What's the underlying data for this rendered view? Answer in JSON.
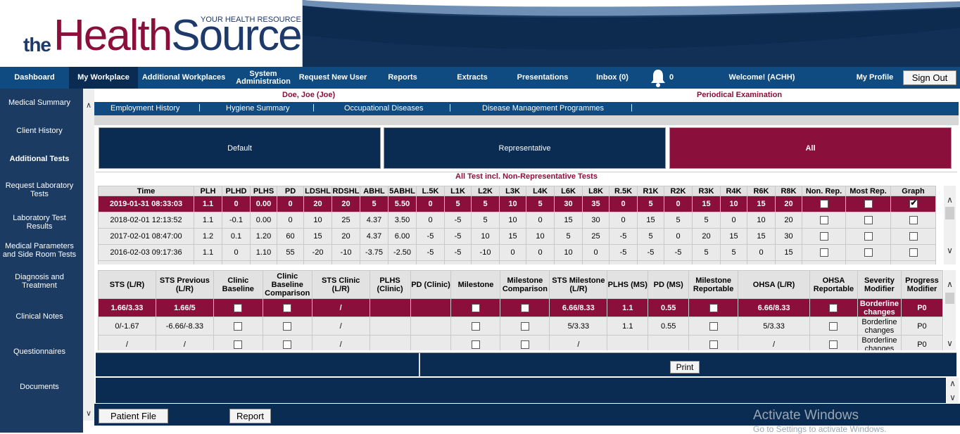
{
  "header": {
    "logo_the": "the",
    "logo_health": "Health",
    "logo_source": "Source",
    "tagline": "YOUR HEALTH RESOURCE"
  },
  "nav": {
    "items": [
      "Dashboard",
      "My Workplace",
      "Additional Workplaces",
      "System Administration",
      "Request New User",
      "Reports",
      "Extracts",
      "Presentations",
      "Inbox (0)"
    ],
    "notifications_count": "0",
    "welcome": "Welcome! (ACHH)",
    "profile": "My Profile",
    "signout": "Sign Out",
    "colors": {
      "nav_bg": "#0f4a80",
      "active_bg": "#0a2c52",
      "brand_maroon": "#8a0f3b",
      "brand_navy": "#1d3a6b"
    }
  },
  "sidebar": {
    "items": [
      "Medical Summary",
      "Client History",
      "Additional Tests",
      "Request Laboratory Tests",
      "Laboratory Test Results",
      "Medical Parameters and Side Room Tests",
      "Diagnosis and Treatment",
      "Clinical Notes",
      "Questionnaires",
      "Documents"
    ]
  },
  "patient": {
    "name": "Doe, Joe (Joe)",
    "exam": "Periodical Examination"
  },
  "subnav": {
    "items": [
      "Employment History",
      "Hygiene Summary",
      "Occupational Diseases",
      "Disease Management Programmes"
    ]
  },
  "filters": {
    "default": "Default",
    "representative": "Representative",
    "all": "All"
  },
  "section_title": "All Test incl. Non-Representative Tests",
  "tests": {
    "headers": [
      "Time",
      "PLH",
      "PLHD",
      "PLHS",
      "PD",
      "LDSHL",
      "RDSHL",
      "ABHL",
      "5ABHL",
      "L.5K",
      "L1K",
      "L2K",
      "L3K",
      "L4K",
      "L6K",
      "L8K",
      "R.5K",
      "R1K",
      "R2K",
      "R3K",
      "R4K",
      "R6K",
      "R8K",
      "Non. Rep.",
      "Most Rep.",
      "Graph"
    ],
    "rows": [
      {
        "time": "2019-01-31 08:33:03",
        "vals": [
          "1.1",
          "0",
          "0.00",
          "0",
          "20",
          "20",
          "5",
          "5.50",
          "0",
          "5",
          "5",
          "10",
          "5",
          "30",
          "35",
          "0",
          "5",
          "0",
          "15",
          "10",
          "15",
          "20"
        ],
        "graph": true
      },
      {
        "time": "2018-02-01 12:13:52",
        "vals": [
          "1.1",
          "-0.1",
          "0.00",
          "0",
          "10",
          "25",
          "4.37",
          "3.50",
          "0",
          "-5",
          "5",
          "10",
          "0",
          "15",
          "30",
          "0",
          "15",
          "5",
          "5",
          "0",
          "10",
          "20"
        ],
        "graph": false
      },
      {
        "time": "2017-02-01 08:47:00",
        "vals": [
          "1.2",
          "0.1",
          "1.20",
          "60",
          "15",
          "20",
          "4.37",
          "6.00",
          "-5",
          "-5",
          "10",
          "15",
          "10",
          "5",
          "25",
          "-5",
          "5",
          "0",
          "20",
          "15",
          "15",
          "30"
        ],
        "graph": false
      },
      {
        "time": "2016-02-03 09:17:36",
        "vals": [
          "1.1",
          "0",
          "1.10",
          "55",
          "-20",
          "-10",
          "-3.75",
          "-2.50",
          "-5",
          "-5",
          "-10",
          "0",
          "0",
          "10",
          "0",
          "-5",
          "-5",
          "-5",
          "5",
          "5",
          "0",
          "15"
        ],
        "graph": false
      }
    ]
  },
  "sts": {
    "headers": [
      "STS (L/R)",
      "STS Previous (L/R)",
      "Clinic Baseline",
      "Clinic Baseline Comparison",
      "STS Clinic (L/R)",
      "PLHS (Clinic)",
      "PD (Clinic)",
      "Milestone",
      "Milestone Comparison",
      "STS Milestone (L/R)",
      "PLHS (MS)",
      "PD (MS)",
      "Milestone Reportable",
      "OHSA (L/R)",
      "OHSA Reportable",
      "Severity Modifier",
      "Progress Modifier"
    ],
    "rows": [
      {
        "sts": "1.66/3.33",
        "prev": "1.66/5",
        "clinic": "/",
        "plhs_c": "",
        "pd_c": "",
        "sts_ms": "6.66/8.33",
        "plhs_ms": "1.1",
        "pd_ms": "0.55",
        "ohsa": "6.66/8.33",
        "sev": "Borderline changes",
        "prog": "P0"
      },
      {
        "sts": "0/-1.67",
        "prev": "-6.66/-8.33",
        "clinic": "/",
        "plhs_c": "",
        "pd_c": "",
        "sts_ms": "5/3.33",
        "plhs_ms": "1.1",
        "pd_ms": "0.55",
        "ohsa": "5/3.33",
        "sev": "Borderline changes",
        "prog": "P0"
      },
      {
        "sts": "/",
        "prev": "/",
        "clinic": "/",
        "plhs_c": "",
        "pd_c": "",
        "sts_ms": "/",
        "plhs_ms": "",
        "pd_ms": "",
        "ohsa": "/",
        "sev": "Borderline changes",
        "prog": "P0"
      }
    ]
  },
  "buttons": {
    "print": "Print",
    "patient_file": "Patient File",
    "report": "Report"
  },
  "watermark": {
    "line1": "Activate Windows",
    "line2": "Go to Settings to activate Windows."
  }
}
